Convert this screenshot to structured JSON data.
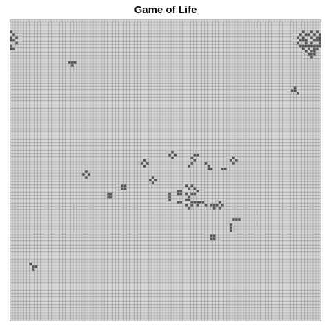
{
  "title": "Game of Life",
  "colors": {
    "background": "#ffffff",
    "grid_line": "#9a9a9a",
    "dead_cell": "#d3d3d3",
    "alive_cell": "#555555"
  },
  "grid": {
    "columns": 112,
    "rows": 108,
    "alive_cells": [
      [
        0,
        4
      ],
      [
        1,
        5
      ],
      [
        0,
        6
      ],
      [
        2,
        6
      ],
      [
        0,
        7
      ],
      [
        1,
        7
      ],
      [
        2,
        8
      ],
      [
        0,
        9
      ],
      [
        1,
        10
      ],
      [
        0,
        10
      ],
      [
        104,
        5
      ],
      [
        105,
        4
      ],
      [
        106,
        5
      ],
      [
        107,
        5
      ],
      [
        108,
        4
      ],
      [
        109,
        5
      ],
      [
        110,
        4
      ],
      [
        111,
        5
      ],
      [
        103,
        6
      ],
      [
        105,
        6
      ],
      [
        108,
        6
      ],
      [
        110,
        6
      ],
      [
        111,
        6
      ],
      [
        104,
        7
      ],
      [
        105,
        7
      ],
      [
        106,
        7
      ],
      [
        109,
        7
      ],
      [
        110,
        7
      ],
      [
        111,
        7
      ],
      [
        103,
        8
      ],
      [
        106,
        8
      ],
      [
        108,
        8
      ],
      [
        111,
        8
      ],
      [
        104,
        9
      ],
      [
        105,
        9
      ],
      [
        106,
        9
      ],
      [
        107,
        9
      ],
      [
        108,
        9
      ],
      [
        109,
        9
      ],
      [
        110,
        9
      ],
      [
        111,
        9
      ],
      [
        105,
        10
      ],
      [
        107,
        10
      ],
      [
        109,
        10
      ],
      [
        110,
        10
      ],
      [
        106,
        11
      ],
      [
        108,
        11
      ],
      [
        109,
        11
      ],
      [
        107,
        12
      ],
      [
        108,
        12
      ],
      [
        109,
        12
      ],
      [
        108,
        13
      ],
      [
        21,
        15
      ],
      [
        22,
        15
      ],
      [
        22,
        16
      ],
      [
        23,
        15
      ],
      [
        101,
        25
      ],
      [
        102,
        24
      ],
      [
        102,
        25
      ],
      [
        103,
        26
      ],
      [
        57,
        48
      ],
      [
        58,
        47
      ],
      [
        59,
        48
      ],
      [
        58,
        49
      ],
      [
        65,
        49
      ],
      [
        66,
        48
      ],
      [
        67,
        48
      ],
      [
        66,
        50
      ],
      [
        65,
        51
      ],
      [
        64,
        52
      ],
      [
        47,
        51
      ],
      [
        48,
        50
      ],
      [
        49,
        51
      ],
      [
        48,
        52
      ],
      [
        79,
        50
      ],
      [
        80,
        49
      ],
      [
        81,
        50
      ],
      [
        80,
        51
      ],
      [
        70,
        51
      ],
      [
        71,
        52
      ],
      [
        72,
        53
      ],
      [
        71,
        53
      ],
      [
        76,
        53
      ],
      [
        77,
        53
      ],
      [
        26,
        55
      ],
      [
        27,
        54
      ],
      [
        28,
        55
      ],
      [
        27,
        56
      ],
      [
        50,
        57
      ],
      [
        51,
        56
      ],
      [
        52,
        57
      ],
      [
        51,
        58
      ],
      [
        40,
        60
      ],
      [
        41,
        59
      ],
      [
        41,
        60
      ],
      [
        40,
        59
      ],
      [
        60,
        61
      ],
      [
        60,
        62
      ],
      [
        61,
        61
      ],
      [
        61,
        62
      ],
      [
        63,
        59
      ],
      [
        64,
        60
      ],
      [
        65,
        59
      ],
      [
        66,
        60
      ],
      [
        67,
        61
      ],
      [
        66,
        62
      ],
      [
        65,
        62
      ],
      [
        63,
        62
      ],
      [
        64,
        63
      ],
      [
        57,
        62
      ],
      [
        57,
        63
      ],
      [
        57,
        64
      ],
      [
        35,
        62
      ],
      [
        36,
        62
      ],
      [
        35,
        63
      ],
      [
        36,
        63
      ],
      [
        60,
        65
      ],
      [
        61,
        65
      ],
      [
        63,
        64
      ],
      [
        64,
        64
      ],
      [
        65,
        65
      ],
      [
        66,
        65
      ],
      [
        67,
        65
      ],
      [
        68,
        65
      ],
      [
        69,
        65
      ],
      [
        63,
        66
      ],
      [
        64,
        67
      ],
      [
        65,
        66
      ],
      [
        67,
        66
      ],
      [
        70,
        66
      ],
      [
        72,
        66
      ],
      [
        73,
        66
      ],
      [
        74,
        66
      ],
      [
        73,
        67
      ],
      [
        75,
        65
      ],
      [
        76,
        66
      ],
      [
        75,
        67
      ],
      [
        80,
        71
      ],
      [
        81,
        71
      ],
      [
        82,
        71
      ],
      [
        79,
        73
      ],
      [
        79,
        74
      ],
      [
        79,
        75
      ],
      [
        72,
        77
      ],
      [
        73,
        77
      ],
      [
        72,
        78
      ],
      [
        73,
        78
      ],
      [
        7,
        87
      ],
      [
        8,
        88
      ],
      [
        9,
        88
      ],
      [
        8,
        89
      ]
    ]
  }
}
